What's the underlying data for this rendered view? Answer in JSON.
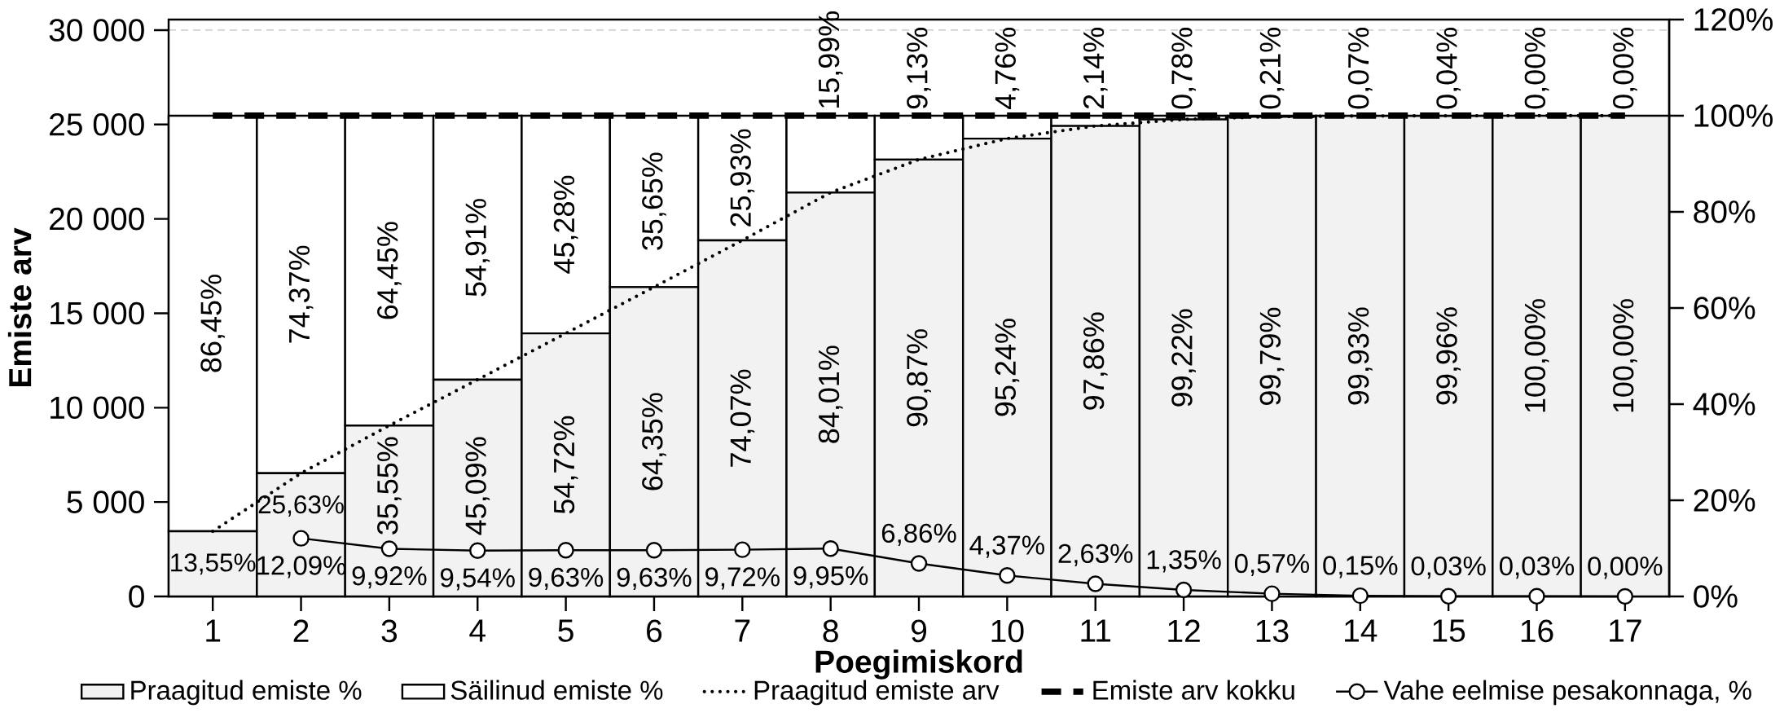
{
  "chart_data": {
    "type": "bar",
    "stacked": true,
    "xlabel": "Poegimiskord",
    "ylabel": "Emiste arv",
    "categories": [
      "1",
      "2",
      "3",
      "4",
      "5",
      "6",
      "7",
      "8",
      "9",
      "10",
      "11",
      "12",
      "13",
      "14",
      "15",
      "16",
      "17"
    ],
    "ylim": [
      0,
      30560
    ],
    "yticks": [
      0,
      {
        "value": 5000,
        "label": "5 000"
      },
      {
        "value": 10000,
        "label": "10 000"
      },
      {
        "value": 15000,
        "label": "15 000"
      },
      {
        "value": 20000,
        "label": "20 000"
      },
      {
        "value": 25000,
        "label": "25 000"
      },
      {
        "value": 30000,
        "label": "30 000"
      }
    ],
    "y2lim": [
      0,
      120
    ],
    "y2ticks": [
      {
        "value": 0,
        "label": "0%"
      },
      {
        "value": 20,
        "label": "20%"
      },
      {
        "value": 40,
        "label": "40%"
      },
      {
        "value": 60,
        "label": "60%"
      },
      {
        "value": 80,
        "label": "80%"
      },
      {
        "value": 100,
        "label": "100%"
      },
      {
        "value": 120,
        "label": "120%"
      }
    ],
    "grid": "y",
    "legend": "bottom",
    "series": [
      {
        "name": "Praagitud emiste %",
        "axis": "y2",
        "color": "#f2f2f2",
        "values": [
          13.55,
          25.63,
          35.55,
          45.09,
          54.72,
          64.35,
          74.07,
          84.01,
          90.87,
          95.24,
          97.86,
          99.22,
          99.79,
          99.93,
          99.96,
          100.0,
          100.0
        ],
        "value_labels": [
          "13,55%",
          "25,63%",
          "35,55%",
          "45,09%",
          "54,72%",
          "64,35%",
          "74,07%",
          "84,01%",
          "90,87%",
          "95,24%",
          "97,86%",
          "99,22%",
          "99,79%",
          "99,93%",
          "99,96%",
          "100,00%",
          "100,00%"
        ]
      },
      {
        "name": "Säilinud emiste %",
        "axis": "y2",
        "color": "#ffffff",
        "values": [
          86.45,
          74.37,
          64.45,
          54.91,
          45.28,
          35.65,
          25.93,
          15.99,
          9.13,
          4.76,
          2.14,
          0.78,
          0.21,
          0.07,
          0.04,
          0.0,
          0.0
        ],
        "value_labels": [
          "86,45%",
          "74,37%",
          "64,45%",
          "54,91%",
          "45,28%",
          "35,65%",
          "25,93%",
          "15,99%",
          "9,13%",
          "4,76%",
          "2,14%",
          "0,78%",
          "0,21%",
          "0,07%",
          "0,04%",
          "0,00%",
          "0,00%"
        ]
      },
      {
        "name": "Praagitud emiste arv",
        "type": "line",
        "line_style": "dotted",
        "marker": "none",
        "color": "#000000",
        "values": [
          3451,
          6528,
          9055,
          11484,
          13937,
          16390,
          18866,
          21397,
          23145,
          24258,
          24925,
          25271,
          25416,
          25452,
          25460,
          25470,
          25470
        ]
      },
      {
        "name": "Emiste arv kokku",
        "type": "line",
        "line_style": "dashed",
        "marker": "none",
        "color": "#000000",
        "values": [
          25470,
          25470,
          25470,
          25470,
          25470,
          25470,
          25470,
          25470,
          25470,
          25470,
          25470,
          25470,
          25470,
          25470,
          25470,
          25470,
          25470
        ]
      },
      {
        "name": "Vahe eelmise pesakonnaga, %",
        "type": "line",
        "axis": "y2",
        "line_style": "solid",
        "marker": "circle",
        "color": "#000000",
        "values": [
          null,
          12.09,
          9.92,
          9.54,
          9.63,
          9.63,
          9.72,
          9.95,
          6.86,
          4.37,
          2.63,
          1.35,
          0.57,
          0.15,
          0.03,
          0.03,
          0.0
        ],
        "value_labels": [
          null,
          "12,09%",
          "9,92%",
          "9,54%",
          "9,63%",
          "9,63%",
          "9,72%",
          "9,95%",
          "6,86%",
          "4,37%",
          "2,63%",
          "1,35%",
          "0,57%",
          "0,15%",
          "0,03%",
          "0,03%",
          "0,00%"
        ]
      }
    ]
  }
}
